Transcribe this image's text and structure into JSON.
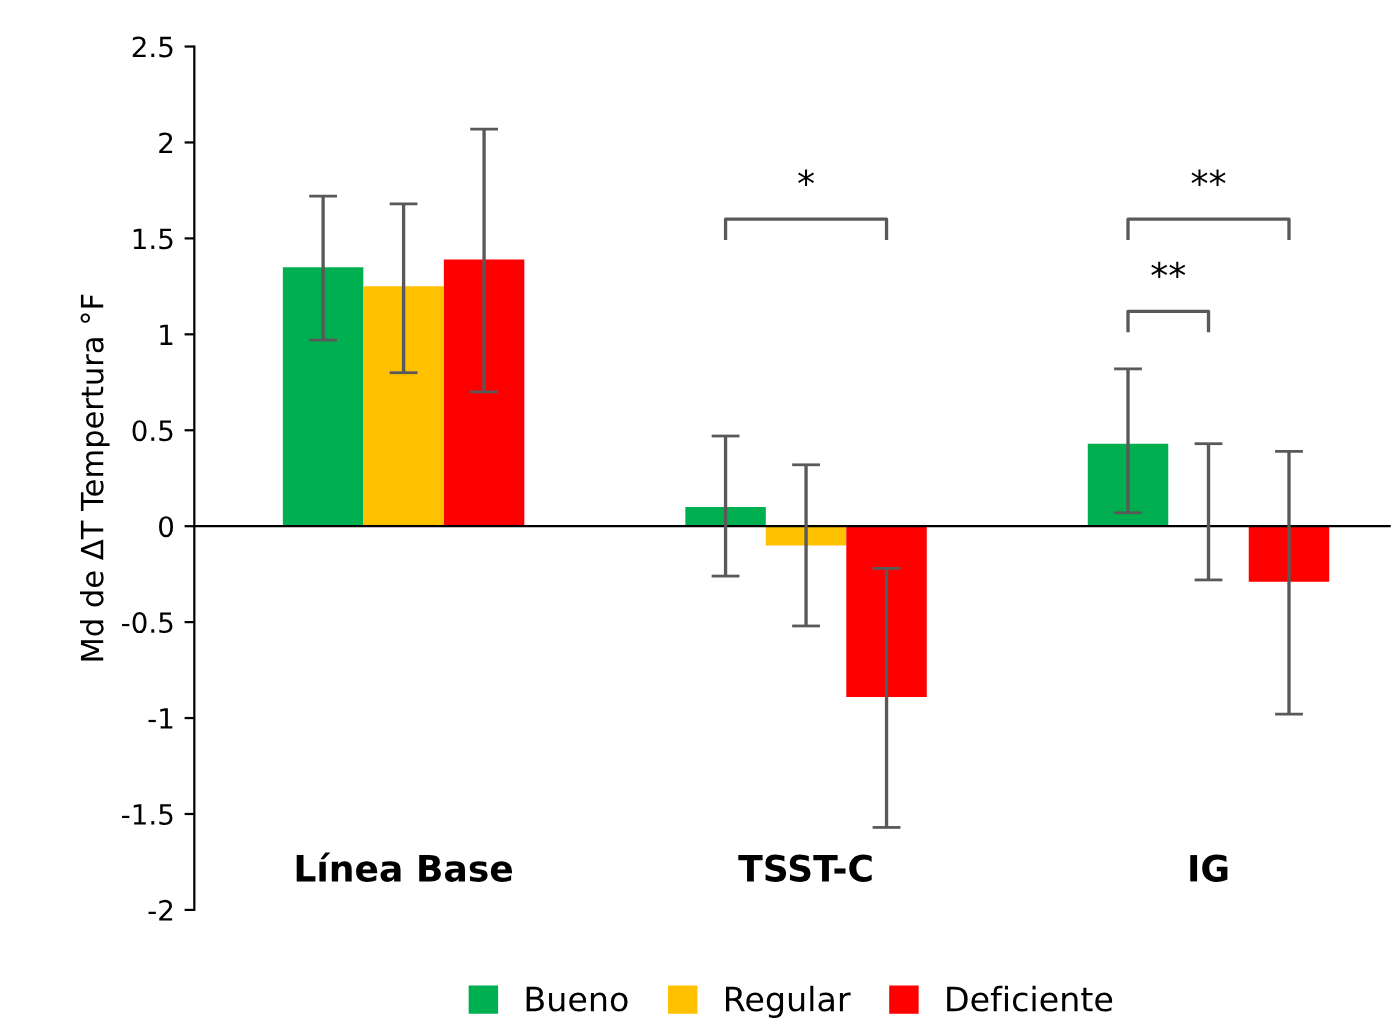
{
  "chart_data": {
    "type": "bar",
    "ylabel": "Md de ΔT Tempertura °F",
    "categories": [
      "Línea Base",
      "TSST-C",
      "IG"
    ],
    "series": [
      {
        "name": "Bueno",
        "color": "#00b050",
        "values": [
          1.35,
          0.1,
          0.43
        ],
        "errors": [
          [
            0.97,
            1.72
          ],
          [
            -0.26,
            0.47
          ],
          [
            0.07,
            0.82
          ]
        ]
      },
      {
        "name": "Regular",
        "color": "#ffc000",
        "values": [
          1.25,
          -0.1,
          0
        ],
        "errors": [
          [
            0.8,
            1.68
          ],
          [
            -0.52,
            0.32
          ],
          [
            -0.28,
            0.43
          ]
        ]
      },
      {
        "name": "Deficiente",
        "color": "#ff0000",
        "values": [
          1.39,
          -0.89,
          -0.29
        ],
        "errors": [
          [
            0.7,
            2.07
          ],
          [
            -1.57,
            -0.22
          ],
          [
            -0.98,
            0.39
          ]
        ]
      }
    ],
    "ylim": [
      -2,
      2.5
    ],
    "yticks": [
      -2,
      -1.5,
      -1,
      -0.5,
      0,
      0.5,
      1,
      1.5,
      2,
      2.5
    ],
    "annotations": [
      "*",
      "**",
      "**"
    ],
    "legend": "bottom"
  }
}
